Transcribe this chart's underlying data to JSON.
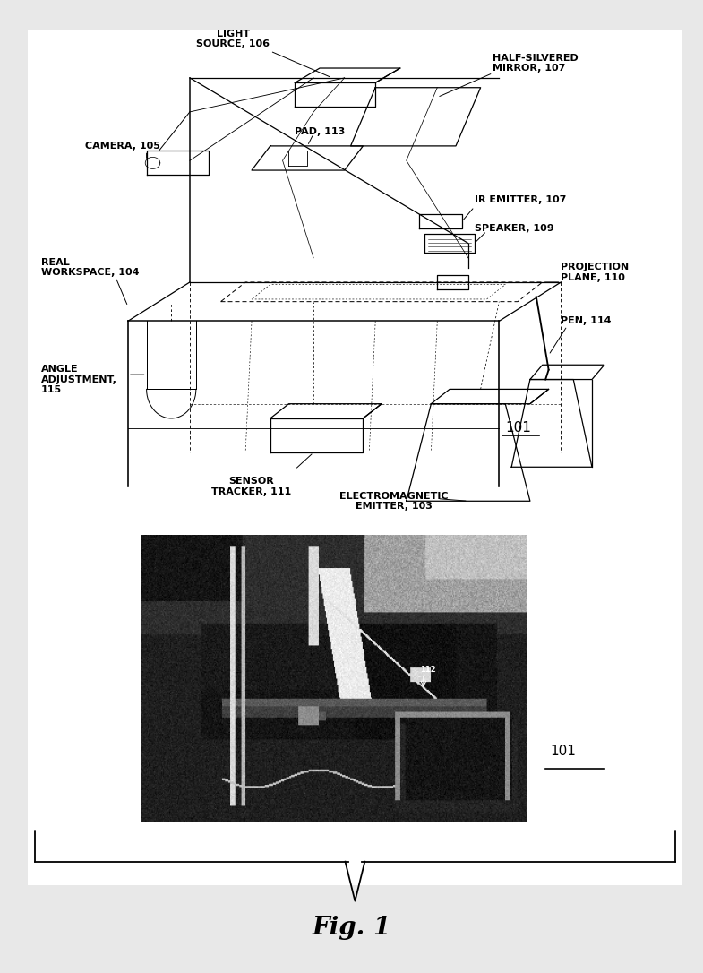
{
  "title": "Fig. 1",
  "bg_color": "#e8e8e8",
  "panel_bg": "#ffffff",
  "fig_width": 7.85,
  "fig_height": 10.86,
  "dpi": 100,
  "labels": {
    "light_source": "LIGHT\nSOURCE, 106",
    "half_silvered": "HALF-SILVERED\nMIRROR, 107",
    "camera": "CAMERA, 105",
    "pad": "PAD, 113",
    "ir_emitter": "IR EMITTER, 107",
    "speaker": "SPEAKER, 109",
    "real_workspace": "REAL\nWORKSPACE, 104",
    "projection_plane": "PROJECTION\nPLANE, 110",
    "pen": "PEN, 114",
    "angle_adjustment": "ANGLE\nADJUSTMENT,\n115",
    "sensor_tracker": "SENSOR\nTRACKER, 111",
    "electromagnetic": "ELECTROMAGNETIC\nEMITTER, 103"
  },
  "font_size_labels": 8,
  "font_size_title": 20,
  "font_size_ref": 11
}
